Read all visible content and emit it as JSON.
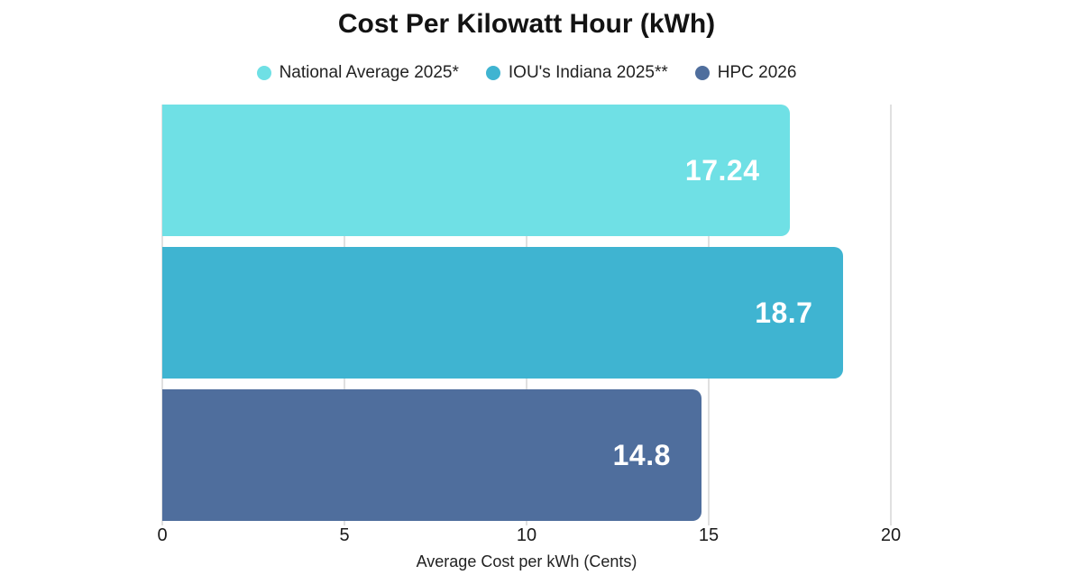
{
  "chart_data": {
    "type": "bar",
    "orientation": "horizontal",
    "title": "Cost Per Kilowatt Hour (kWh)",
    "xlabel": "Average Cost per kWh (Cents)",
    "xlim": [
      0,
      20
    ],
    "xticks": [
      0,
      5,
      10,
      15,
      20
    ],
    "grid": "vertical-light-gray",
    "legend_position": "top-center",
    "series": [
      {
        "name": "National Average 2025*",
        "value": 17.24,
        "value_label": "17.24",
        "color": "#6FE0E5"
      },
      {
        "name": "IOU's Indiana 2025**",
        "value": 18.7,
        "value_label": "18.7",
        "color": "#3FB4D1"
      },
      {
        "name": "HPC 2026",
        "value": 14.8,
        "value_label": "14.8",
        "color": "#4F6E9D"
      }
    ]
  },
  "colors": {
    "background": "#FFFFFF",
    "gridline": "#E0E0E0",
    "value_label_text": "#FFFFFF",
    "title_text": "#131313",
    "axis_text": "#1A1A1A"
  }
}
